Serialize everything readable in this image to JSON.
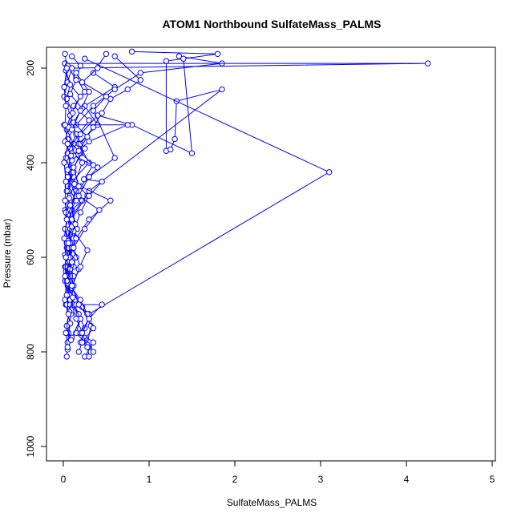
{
  "chart_data": {
    "type": "line",
    "title": "ATOM1 Northbound SulfateMass_PALMS",
    "xlabel": "SulfateMass_PALMS",
    "ylabel": "Pressure (mbar)",
    "xlim": [
      0,
      5
    ],
    "ylim": [
      1030,
      160
    ],
    "y_reversed": true,
    "x_ticks": [
      0,
      1,
      2,
      3,
      4,
      5
    ],
    "y_ticks": [
      200,
      400,
      600,
      800,
      1000
    ],
    "grid": false,
    "legend": "none",
    "series_color": "#0000ff",
    "marker": "open-circle",
    "series": [
      {
        "values": [
          [
            0.02,
            190
          ],
          [
            0.05,
            230
          ],
          [
            0.01,
            260
          ],
          [
            0.08,
            300
          ],
          [
            0.04,
            330
          ],
          [
            0.12,
            360
          ],
          [
            0.03,
            390
          ],
          [
            0.09,
            420
          ],
          [
            0.05,
            450
          ],
          [
            0.15,
            480
          ],
          [
            0.06,
            510
          ],
          [
            0.1,
            540
          ],
          [
            0.04,
            570
          ],
          [
            0.08,
            600
          ],
          [
            0.03,
            630
          ],
          [
            0.07,
            660
          ],
          [
            0.05,
            690
          ],
          [
            0.09,
            720
          ],
          [
            0.06,
            760
          ],
          [
            0.04,
            810
          ]
        ]
      },
      {
        "values": [
          [
            0.1,
            175
          ],
          [
            0.2,
            195
          ],
          [
            0.15,
            220
          ],
          [
            0.25,
            250
          ],
          [
            0.12,
            280
          ],
          [
            0.3,
            310
          ],
          [
            0.18,
            340
          ],
          [
            0.08,
            370
          ],
          [
            0.22,
            400
          ],
          [
            0.14,
            440
          ],
          [
            0.28,
            470
          ],
          [
            0.1,
            500
          ],
          [
            0.16,
            540
          ],
          [
            0.06,
            580
          ],
          [
            0.12,
            620
          ],
          [
            0.05,
            660
          ],
          [
            0.1,
            700
          ],
          [
            0.2,
            730
          ],
          [
            0.15,
            760
          ],
          [
            0.3,
            790
          ]
        ]
      },
      {
        "values": [
          [
            0.5,
            170
          ],
          [
            0.35,
            210
          ],
          [
            0.6,
            240
          ],
          [
            0.25,
            280
          ],
          [
            0.4,
            320
          ],
          [
            0.18,
            360
          ],
          [
            0.3,
            400
          ],
          [
            0.1,
            440
          ],
          [
            0.22,
            480
          ],
          [
            0.08,
            520
          ],
          [
            0.15,
            560
          ],
          [
            0.05,
            600
          ],
          [
            0.12,
            640
          ],
          [
            0.07,
            680
          ],
          [
            0.18,
            720
          ],
          [
            0.25,
            750
          ],
          [
            0.2,
            780
          ]
        ]
      },
      {
        "values": [
          [
            1.35,
            175
          ],
          [
            1.85,
            190
          ],
          [
            0.9,
            210
          ],
          [
            0.6,
            245
          ],
          [
            0.35,
            280
          ],
          [
            0.15,
            320
          ],
          [
            0.05,
            350
          ],
          [
            0.2,
            380
          ],
          [
            0.1,
            420
          ],
          [
            0.06,
            460
          ],
          [
            0.02,
            500
          ],
          [
            0.08,
            540
          ],
          [
            0.04,
            580
          ],
          [
            0.02,
            620
          ],
          [
            0.06,
            660
          ],
          [
            0.03,
            700
          ],
          [
            0.08,
            740
          ],
          [
            0.05,
            780
          ]
        ]
      },
      {
        "values": [
          [
            0.02,
            190
          ],
          [
            4.25,
            190
          ],
          [
            0.1,
            200
          ],
          [
            0.05,
            230
          ],
          [
            0.2,
            260
          ],
          [
            0.08,
            300
          ],
          [
            0.15,
            340
          ],
          [
            0.05,
            380
          ],
          [
            0.12,
            420
          ],
          [
            0.04,
            460
          ],
          [
            0.09,
            500
          ],
          [
            0.02,
            540
          ],
          [
            0.06,
            580
          ],
          [
            0.03,
            620
          ],
          [
            0.08,
            660
          ],
          [
            0.04,
            700
          ]
        ]
      },
      {
        "values": [
          [
            0.8,
            165
          ],
          [
            1.8,
            170
          ],
          [
            1.2,
            185
          ],
          [
            1.2,
            375
          ],
          [
            1.25,
            372
          ],
          [
            1.3,
            350
          ],
          [
            1.32,
            270
          ],
          [
            1.85,
            245
          ],
          [
            0.3,
            460
          ],
          [
            0.1,
            520
          ],
          [
            0.05,
            560
          ],
          [
            0.15,
            600
          ],
          [
            0.08,
            640
          ],
          [
            0.12,
            700
          ],
          [
            0.2,
            730
          ],
          [
            0.1,
            770
          ]
        ]
      },
      {
        "values": [
          [
            1.4,
            180
          ],
          [
            1.5,
            380
          ],
          [
            0.8,
            320
          ],
          [
            0.4,
            300
          ],
          [
            0.2,
            340
          ],
          [
            0.1,
            380
          ],
          [
            0.05,
            420
          ],
          [
            0.15,
            460
          ],
          [
            0.08,
            500
          ],
          [
            0.02,
            540
          ],
          [
            0.1,
            580
          ],
          [
            0.05,
            620
          ],
          [
            0.12,
            660
          ],
          [
            0.08,
            700
          ]
        ]
      },
      {
        "values": [
          [
            0.25,
            180
          ],
          [
            3.1,
            420
          ],
          [
            0.3,
            720
          ],
          [
            0.15,
            700
          ],
          [
            0.45,
            700
          ],
          [
            0.3,
            730
          ],
          [
            0.2,
            760
          ],
          [
            0.35,
            780
          ],
          [
            0.25,
            810
          ]
        ]
      },
      {
        "values": [
          [
            0.6,
            175
          ],
          [
            0.9,
            225
          ],
          [
            0.75,
            245
          ],
          [
            0.55,
            265
          ],
          [
            0.45,
            295
          ],
          [
            0.35,
            325
          ],
          [
            0.2,
            360
          ],
          [
            0.1,
            395
          ],
          [
            0.05,
            430
          ],
          [
            0.15,
            470
          ],
          [
            0.05,
            510
          ],
          [
            0.12,
            560
          ],
          [
            0.06,
            610
          ],
          [
            0.02,
            650
          ],
          [
            0.08,
            690
          ],
          [
            0.15,
            730
          ],
          [
            0.25,
            770
          ],
          [
            0.35,
            800
          ]
        ]
      },
      {
        "values": [
          [
            0.01,
            320
          ],
          [
            0.75,
            320
          ],
          [
            0.3,
            355
          ],
          [
            0.12,
            385
          ],
          [
            0.4,
            410
          ],
          [
            0.2,
            450
          ],
          [
            0.55,
            480
          ],
          [
            0.3,
            520
          ],
          [
            0.15,
            560
          ],
          [
            0.08,
            600
          ],
          [
            0.04,
            640
          ],
          [
            0.02,
            690
          ]
        ]
      },
      {
        "values": [
          [
            0.05,
            195
          ],
          [
            0.15,
            225
          ],
          [
            0.08,
            255
          ],
          [
            0.22,
            285
          ],
          [
            0.12,
            315
          ],
          [
            0.28,
            345
          ],
          [
            0.18,
            375
          ],
          [
            0.35,
            405
          ],
          [
            0.24,
            435
          ],
          [
            0.45,
            440
          ],
          [
            0.3,
            470
          ],
          [
            0.2,
            505
          ],
          [
            0.12,
            545
          ],
          [
            0.28,
            585
          ],
          [
            0.18,
            625
          ],
          [
            0.1,
            665
          ],
          [
            0.22,
            705
          ],
          [
            0.32,
            745
          ],
          [
            0.28,
            785
          ],
          [
            0.3,
            810
          ]
        ]
      },
      {
        "values": [
          [
            0.03,
            205
          ],
          [
            0.08,
            235
          ],
          [
            0.04,
            265
          ],
          [
            0.11,
            295
          ],
          [
            0.06,
            325
          ],
          [
            0.02,
            355
          ],
          [
            0.09,
            385
          ],
          [
            0.05,
            415
          ],
          [
            0.13,
            445
          ],
          [
            0.07,
            475
          ],
          [
            0.03,
            505
          ],
          [
            0.1,
            535
          ],
          [
            0.06,
            565
          ],
          [
            0.02,
            595
          ],
          [
            0.08,
            625
          ],
          [
            0.05,
            655
          ],
          [
            0.11,
            685
          ],
          [
            0.07,
            715
          ],
          [
            0.04,
            745
          ],
          [
            0.09,
            775
          ],
          [
            0.05,
            795
          ]
        ]
      },
      {
        "values": [
          [
            0.15,
            210
          ],
          [
            0.3,
            250
          ],
          [
            0.2,
            290
          ],
          [
            0.1,
            330
          ],
          [
            0.25,
            370
          ],
          [
            0.12,
            410
          ],
          [
            0.18,
            450
          ],
          [
            0.08,
            490
          ],
          [
            0.14,
            530
          ],
          [
            0.06,
            570
          ],
          [
            0.1,
            610
          ],
          [
            0.04,
            650
          ],
          [
            0.2,
            690
          ],
          [
            0.28,
            720
          ],
          [
            0.35,
            750
          ],
          [
            0.22,
            780
          ],
          [
            0.18,
            800
          ]
        ]
      },
      {
        "values": [
          [
            0.02,
            170
          ],
          [
            0.04,
            200
          ],
          [
            0.01,
            240
          ],
          [
            0.03,
            280
          ],
          [
            0.02,
            320
          ],
          [
            0.05,
            360
          ],
          [
            0.01,
            400
          ],
          [
            0.03,
            440
          ],
          [
            0.02,
            480
          ],
          [
            0.04,
            520
          ],
          [
            0.01,
            560
          ],
          [
            0.03,
            600
          ],
          [
            0.02,
            640
          ],
          [
            0.04,
            680
          ],
          [
            0.06,
            720
          ],
          [
            0.03,
            760
          ],
          [
            0.05,
            790
          ]
        ]
      },
      {
        "values": [
          [
            0.4,
            200
          ],
          [
            0.22,
            230
          ],
          [
            0.5,
            260
          ],
          [
            0.35,
            290
          ],
          [
            0.6,
            390
          ],
          [
            0.3,
            430
          ],
          [
            0.18,
            470
          ],
          [
            0.42,
            500
          ],
          [
            0.25,
            540
          ],
          [
            0.12,
            580
          ],
          [
            0.2,
            620
          ],
          [
            0.1,
            660
          ],
          [
            0.18,
            700
          ],
          [
            0.3,
            730
          ],
          [
            0.22,
            760
          ],
          [
            0.28,
            790
          ]
        ]
      }
    ]
  }
}
